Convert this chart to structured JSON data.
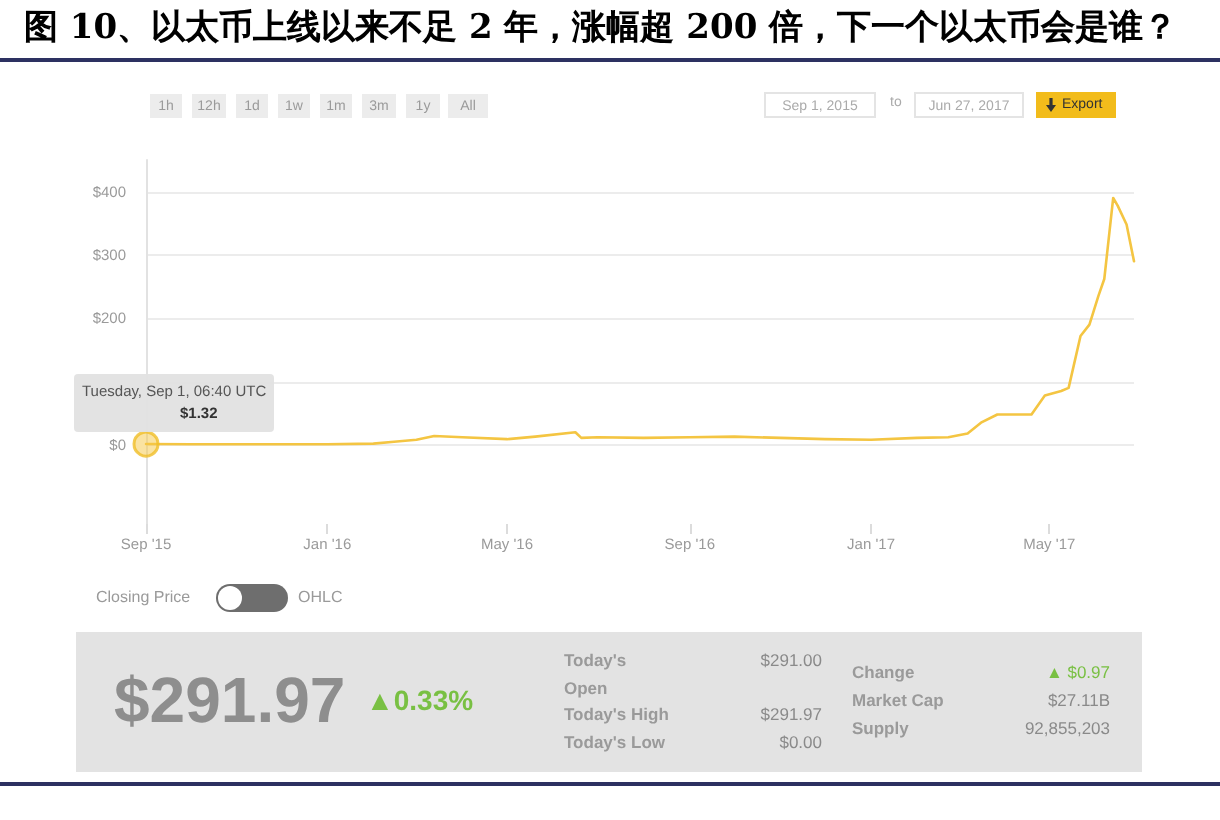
{
  "chart_data": {
    "type": "line",
    "title": "图 10、以太币上线以来不足 2 年，涨幅超 200 倍，下一个以太币会是谁？",
    "x": [
      "2015-09-01",
      "2015-10-01",
      "2015-11-01",
      "2015-12-01",
      "2016-01-01",
      "2016-02-01",
      "2016-02-15",
      "2016-03-01",
      "2016-03-13",
      "2016-04-01",
      "2016-05-01",
      "2016-05-20",
      "2016-06-16",
      "2016-06-20",
      "2016-07-01",
      "2016-08-01",
      "2016-09-01",
      "2016-10-01",
      "2016-11-01",
      "2016-12-01",
      "2017-01-01",
      "2017-02-01",
      "2017-02-22",
      "2017-03-07",
      "2017-03-16",
      "2017-03-27",
      "2017-04-19",
      "2017-04-28",
      "2017-05-09",
      "2017-05-14",
      "2017-05-22",
      "2017-05-28",
      "2017-06-03",
      "2017-06-07",
      "2017-06-13",
      "2017-06-16",
      "2017-06-22",
      "2017-06-27"
    ],
    "values": [
      1.32,
      1,
      1,
      1,
      1,
      2,
      5,
      8,
      14,
      12,
      9,
      13,
      20,
      11,
      12,
      11,
      12,
      13,
      11,
      9,
      8,
      11,
      12,
      18,
      35,
      48,
      48,
      78,
      85,
      90,
      172,
      190,
      235,
      262,
      390,
      378,
      348,
      290
    ],
    "color": "#f4c542",
    "marker": "none",
    "grid": "y",
    "xlim": [
      "2015-09-01",
      "2017-06-27"
    ],
    "xticks": [
      {
        "value": "2015-09-01",
        "label": "Sep '15"
      },
      {
        "value": "2016-01-01",
        "label": "Jan '16"
      },
      {
        "value": "2016-05-01",
        "label": "May '16"
      },
      {
        "value": "2016-09-01",
        "label": "Sep '16"
      },
      {
        "value": "2017-01-01",
        "label": "Jan '17"
      },
      {
        "value": "2017-05-01",
        "label": "May '17"
      }
    ],
    "ylim": [
      -125,
      450
    ],
    "yticks": [
      {
        "value": 0,
        "label": "$0"
      },
      {
        "value": 100,
        "label": null
      },
      {
        "value": 200,
        "label": "$200"
      },
      {
        "value": 300,
        "label": "$300"
      },
      {
        "value": 400,
        "label": "$400"
      }
    ],
    "annotations": [
      "1h",
      "12h",
      "1d",
      "1w",
      "1m",
      "3m",
      "1y",
      "All",
      "Sep 1, 2015",
      "to",
      "Jun 27, 2017",
      "Export",
      {
        "text": "Tuesday, Sep 1, 06:40 UTC",
        "x": "2015-09-01",
        "y": 1.32
      },
      {
        "text": "$1.32",
        "x": "2015-09-01",
        "y": 1.32
      },
      "Closing Price",
      "OHLC",
      "$291.97",
      "▲0.33%",
      "Today's Open",
      "$291.00",
      "Today's High",
      "$291.97",
      "Today's Low",
      "$0.00",
      "Change",
      "▲ $0.97",
      "Market Cap",
      "$27.11B",
      "Supply",
      "92,855,203"
    ]
  }
}
